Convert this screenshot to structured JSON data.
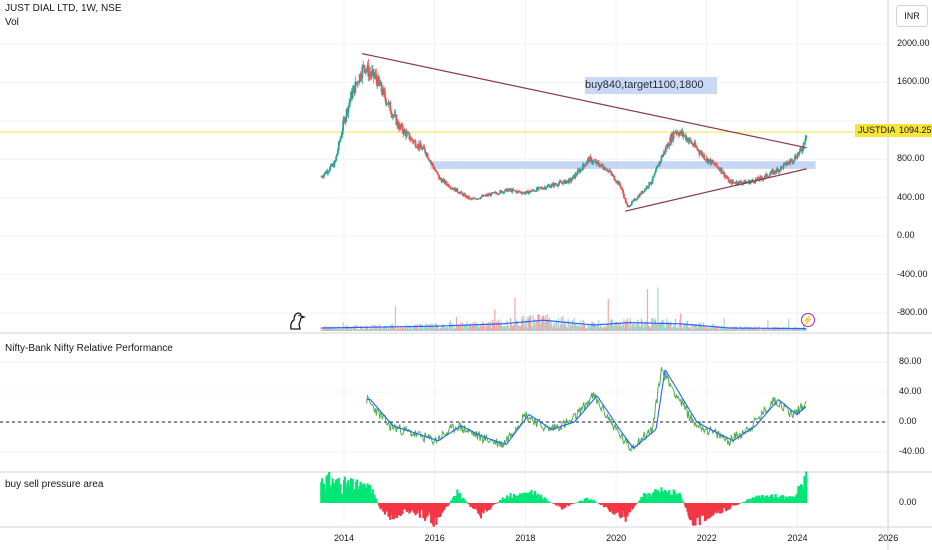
{
  "header": {
    "title": "JUST DIAL LTD, 1W, NSE",
    "vol_label": "Vol"
  },
  "currency_button": "INR",
  "last_price": {
    "symbol": "JUSTDIAL",
    "value": "1094.25"
  },
  "annotation": "buy840,target1100,1800",
  "panes": {
    "rel_perf_title": "Nifty-Bank Nifty Relative Performance",
    "pressure_title": "buy sell pressure area"
  },
  "main_axis": {
    "ticks": [
      "2000.00",
      "1600.00",
      "1200.00",
      "800.00",
      "400.00",
      "0.00",
      "-400.00",
      "-800.00"
    ]
  },
  "rel_axis": {
    "ticks": [
      "80.00",
      "40.00",
      "0.00",
      "-40.00"
    ]
  },
  "press_axis": {
    "ticks": [
      "0.00"
    ]
  },
  "x_axis": {
    "ticks": [
      "2014",
      "2016",
      "2018",
      "2020",
      "2022",
      "2024",
      "2026"
    ]
  },
  "colors": {
    "up": "#26a69a",
    "down": "#ef5350",
    "trendline": "#8b3a46",
    "zone": "#bcd0f3",
    "ma": "#2962ff",
    "rsi": "#4caf50",
    "green_area": "#00e676",
    "red_area": "#f23645",
    "last_line": "#f6e43a",
    "bolt": "#9c27b0"
  },
  "chart_data": [
    {
      "type": "candlestick",
      "title": "JUST DIAL LTD, 1W, NSE",
      "x_range": [
        2013.2,
        2026.5
      ],
      "ylim": [
        -900,
        2200
      ],
      "close_path": [
        [
          2013.5,
          620
        ],
        [
          2013.8,
          760
        ],
        [
          2014.0,
          1200
        ],
        [
          2014.15,
          1450
        ],
        [
          2014.3,
          1620
        ],
        [
          2014.45,
          1780
        ],
        [
          2014.55,
          1700
        ],
        [
          2014.7,
          1650
        ],
        [
          2014.85,
          1500
        ],
        [
          2015.0,
          1350
        ],
        [
          2015.2,
          1150
        ],
        [
          2015.5,
          1000
        ],
        [
          2015.8,
          880
        ],
        [
          2016.1,
          600
        ],
        [
          2016.4,
          500
        ],
        [
          2016.8,
          380
        ],
        [
          2017.2,
          430
        ],
        [
          2017.6,
          480
        ],
        [
          2018.0,
          450
        ],
        [
          2018.5,
          520
        ],
        [
          2019.0,
          580
        ],
        [
          2019.4,
          800
        ],
        [
          2019.8,
          700
        ],
        [
          2020.1,
          520
        ],
        [
          2020.25,
          300
        ],
        [
          2020.5,
          420
        ],
        [
          2020.8,
          580
        ],
        [
          2021.0,
          820
        ],
        [
          2021.3,
          1100
        ],
        [
          2021.5,
          1050
        ],
        [
          2021.8,
          900
        ],
        [
          2022.0,
          800
        ],
        [
          2022.3,
          700
        ],
        [
          2022.5,
          560
        ],
        [
          2022.9,
          560
        ],
        [
          2023.2,
          600
        ],
        [
          2023.6,
          700
        ],
        [
          2023.9,
          800
        ],
        [
          2024.1,
          900
        ],
        [
          2024.2,
          1094
        ]
      ],
      "trendlines": [
        {
          "from": [
            2014.4,
            1900
          ],
          "to": [
            2024.2,
            920
          ]
        },
        {
          "from": [
            2020.2,
            260
          ],
          "to": [
            2024.2,
            700
          ]
        }
      ],
      "support_zone": [
        700,
        780
      ],
      "last_value": 1094.25
    },
    {
      "type": "bar",
      "title": "Vol",
      "volume_ma_path": [
        [
          2013.5,
          0.05
        ],
        [
          2016.0,
          0.08
        ],
        [
          2017.5,
          0.12
        ],
        [
          2018.4,
          0.18
        ],
        [
          2019.5,
          0.1
        ],
        [
          2020.3,
          0.14
        ],
        [
          2021.4,
          0.12
        ],
        [
          2022.5,
          0.05
        ],
        [
          2024.2,
          0.04
        ]
      ]
    },
    {
      "type": "line",
      "title": "Nifty-Bank Nifty Relative Performance",
      "ylim": [
        -60,
        100
      ],
      "series": [
        {
          "values_path": [
            [
              2014.5,
              30
            ],
            [
              2015.0,
              -5
            ],
            [
              2015.5,
              -15
            ],
            [
              2016.0,
              -25
            ],
            [
              2016.5,
              -5
            ],
            [
              2017.0,
              -20
            ],
            [
              2017.5,
              -30
            ],
            [
              2018.0,
              10
            ],
            [
              2018.5,
              -10
            ],
            [
              2019.0,
              0
            ],
            [
              2019.5,
              35
            ],
            [
              2020.0,
              -10
            ],
            [
              2020.3,
              -35
            ],
            [
              2020.8,
              -10
            ],
            [
              2021.0,
              70
            ],
            [
              2021.3,
              40
            ],
            [
              2021.7,
              0
            ],
            [
              2022.0,
              -10
            ],
            [
              2022.5,
              -25
            ],
            [
              2023.0,
              -5
            ],
            [
              2023.5,
              30
            ],
            [
              2023.9,
              10
            ],
            [
              2024.2,
              25
            ]
          ]
        }
      ]
    },
    {
      "type": "area",
      "title": "buy sell pressure area",
      "values_path": [
        [
          2013.5,
          1
        ],
        [
          2014.0,
          0.8
        ],
        [
          2014.6,
          0.6
        ],
        [
          2014.9,
          -0.6
        ],
        [
          2015.5,
          -0.3
        ],
        [
          2016.0,
          -0.8
        ],
        [
          2016.5,
          0.4
        ],
        [
          2017.0,
          -0.5
        ],
        [
          2017.6,
          0.3
        ],
        [
          2018.2,
          0.4
        ],
        [
          2018.8,
          -0.2
        ],
        [
          2019.4,
          0.2
        ],
        [
          2019.9,
          -0.3
        ],
        [
          2020.2,
          -0.6
        ],
        [
          2020.6,
          0.3
        ],
        [
          2021.0,
          0.5
        ],
        [
          2021.4,
          0.4
        ],
        [
          2021.7,
          -0.8
        ],
        [
          2022.0,
          -0.5
        ],
        [
          2022.5,
          -0.2
        ],
        [
          2023.0,
          0.2
        ],
        [
          2023.5,
          0.3
        ],
        [
          2023.9,
          0.2
        ],
        [
          2024.2,
          1
        ]
      ]
    }
  ]
}
